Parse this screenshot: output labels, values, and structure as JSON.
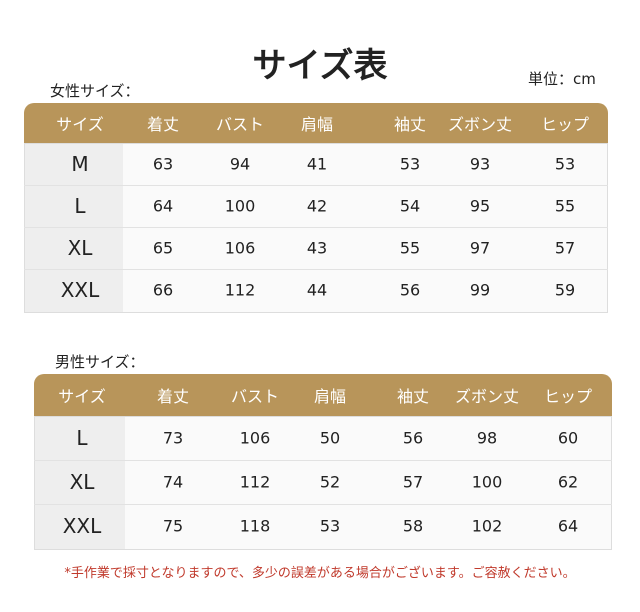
{
  "title": "サイズ表",
  "unit": "単位：cm",
  "tables": [
    {
      "label": "女性サイズ：",
      "headers": [
        "サイズ",
        "着丈",
        "バスト",
        "肩幅",
        "袖丈",
        "ズボン丈",
        "ヒップ"
      ],
      "rows": [
        [
          "M",
          63,
          94,
          41,
          53,
          93,
          53
        ],
        [
          "L",
          64,
          100,
          42,
          54,
          95,
          55
        ],
        [
          "XL",
          65,
          106,
          43,
          55,
          97,
          57
        ],
        [
          "XXL",
          66,
          112,
          44,
          56,
          99,
          59
        ]
      ]
    },
    {
      "label": "男性サイズ：",
      "headers": [
        "サイズ",
        "着丈",
        "バスト",
        "肩幅",
        "袖丈",
        "ズボン丈",
        "ヒップ"
      ],
      "rows": [
        [
          "L",
          73,
          106,
          50,
          56,
          98,
          60
        ],
        [
          "XL",
          74,
          112,
          52,
          57,
          100,
          62
        ],
        [
          "XXL",
          75,
          118,
          53,
          58,
          102,
          64
        ]
      ]
    }
  ],
  "note": "*手作業で採寸となりますので、多少の誤差がある場合がございます。ご容赦ください。"
}
